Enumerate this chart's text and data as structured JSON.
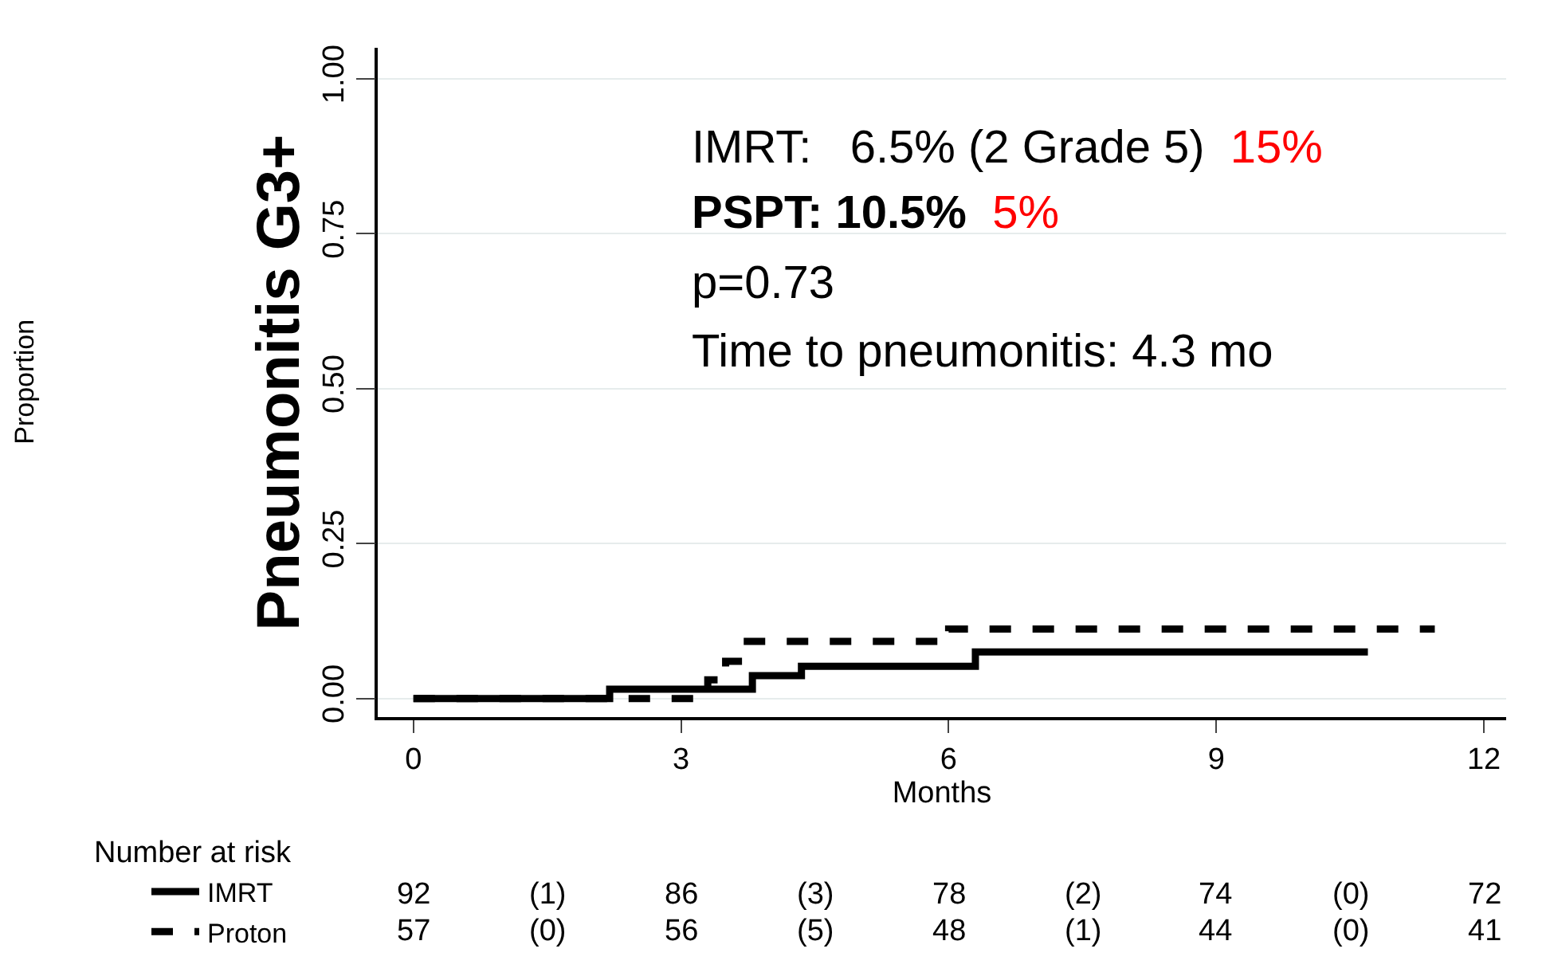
{
  "chart_data": {
    "type": "step",
    "xlabel": "Months",
    "ylabel": "Pneumonitis G3+",
    "series": [
      {
        "name": "IMRT",
        "color": "#000000",
        "line_style": "solid",
        "x": [
          0,
          2.2,
          3.8,
          4.35,
          6.3,
          10.7
        ],
        "values": [
          0,
          0.015,
          0.037,
          0.052,
          0.075,
          0.075
        ]
      },
      {
        "name": "Proton",
        "color": "#000000",
        "line_style": "dashed",
        "x": [
          0,
          3.3,
          3.5,
          3.7,
          6.0,
          11.45
        ],
        "values": [
          0,
          0.03,
          0.06,
          0.092,
          0.112,
          0.112
        ]
      }
    ],
    "xlim": [
      -0.4,
      12.25
    ],
    "xticks": [
      0,
      3,
      6,
      9,
      12
    ],
    "ylim": [
      -0.03,
      1.05
    ],
    "yticks": [
      {
        "value": 0,
        "label": "0.00"
      },
      {
        "value": 0.25,
        "label": "0.25"
      },
      {
        "value": 0.5,
        "label": "0.50"
      },
      {
        "value": 0.75,
        "label": "0.75"
      },
      {
        "value": 1,
        "label": "1.00"
      }
    ],
    "grid": "y",
    "legend": "bottom left",
    "marker": "none",
    "annotations": [
      "IMRT:   6.5% (2 Grade 5)",
      "15%",
      "PSPT: 10.5%",
      "5%",
      "p=0.73",
      "Time to pneumonitis: 4.3 mo",
      "Number at risk",
      "92",
      "(1)",
      "86",
      "(3)",
      "78",
      "(2)",
      "74",
      "(0)",
      "72",
      "57",
      "(0)",
      "56",
      "(5)",
      "48",
      "(1)",
      "44",
      "(0)",
      "41",
      "Proportion"
    ]
  }
}
